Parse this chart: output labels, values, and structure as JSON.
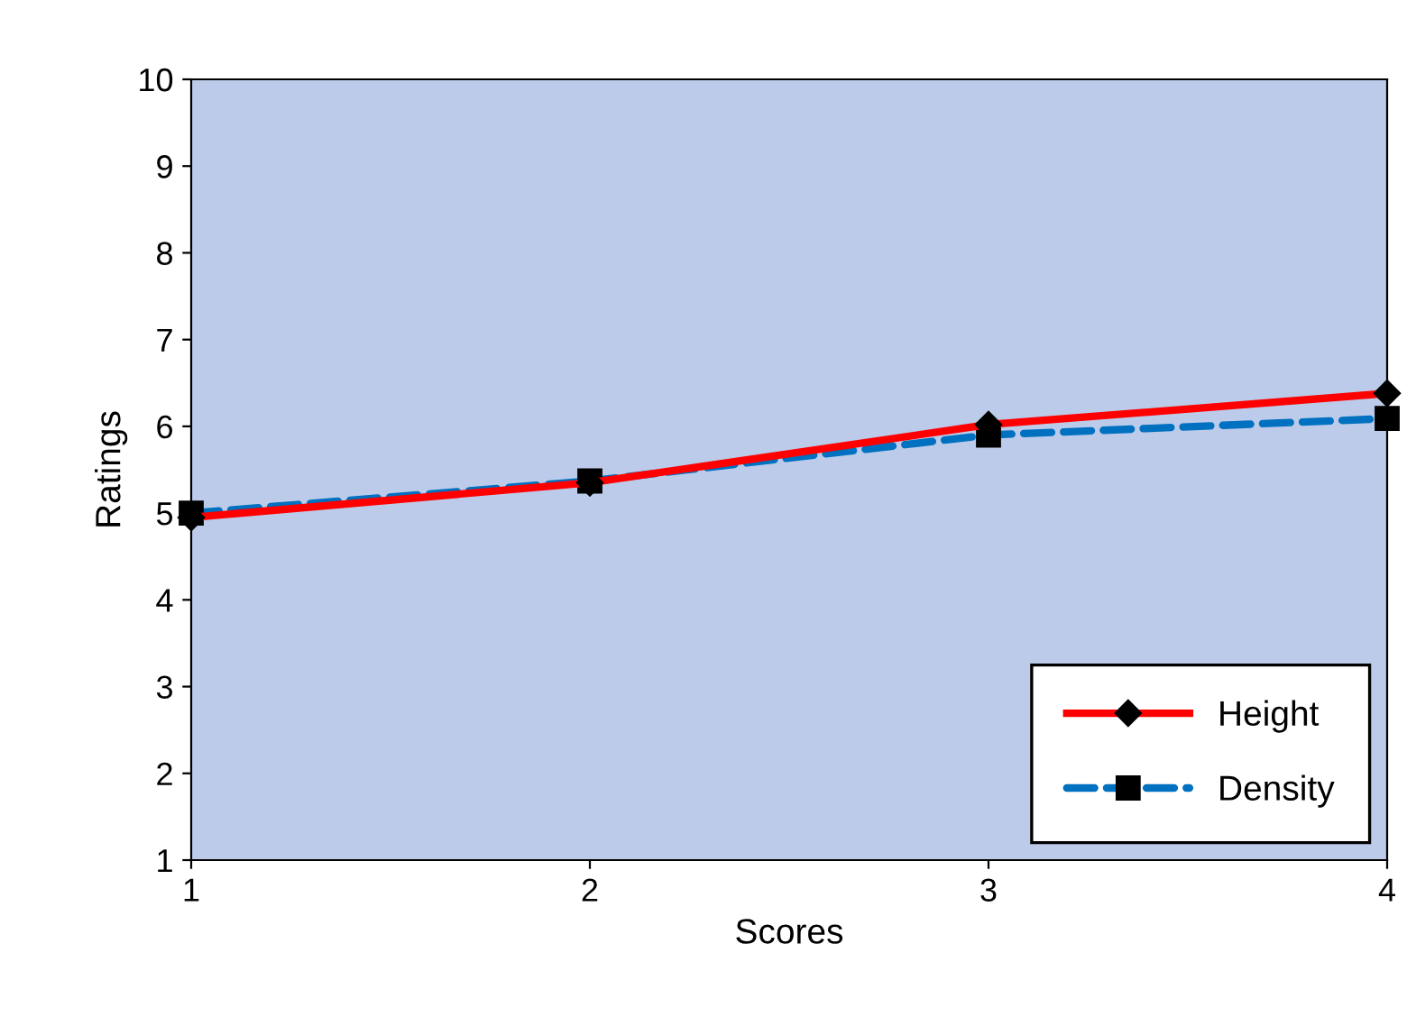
{
  "chart_data": {
    "type": "line",
    "xlabel": "Scores",
    "ylabel": "Ratings",
    "x": [
      1,
      2,
      3,
      4
    ],
    "series": [
      {
        "name": "Height",
        "color": "#ff0000",
        "values": [
          4.95,
          5.35,
          6.02,
          6.38
        ],
        "marker": "diamond",
        "line_style": "solid"
      },
      {
        "name": "Density",
        "color": "#0070c0",
        "values": [
          5.0,
          5.37,
          5.9,
          6.09
        ],
        "marker": "square",
        "line_style": "dashed"
      }
    ],
    "xlim": [
      1,
      4
    ],
    "xticks": [
      1,
      2,
      3,
      4
    ],
    "ylim": [
      1,
      10
    ],
    "yticks": [
      1,
      2,
      3,
      4,
      5,
      6,
      7,
      8,
      9,
      10
    ],
    "grid": false,
    "legend": "bottom right"
  }
}
